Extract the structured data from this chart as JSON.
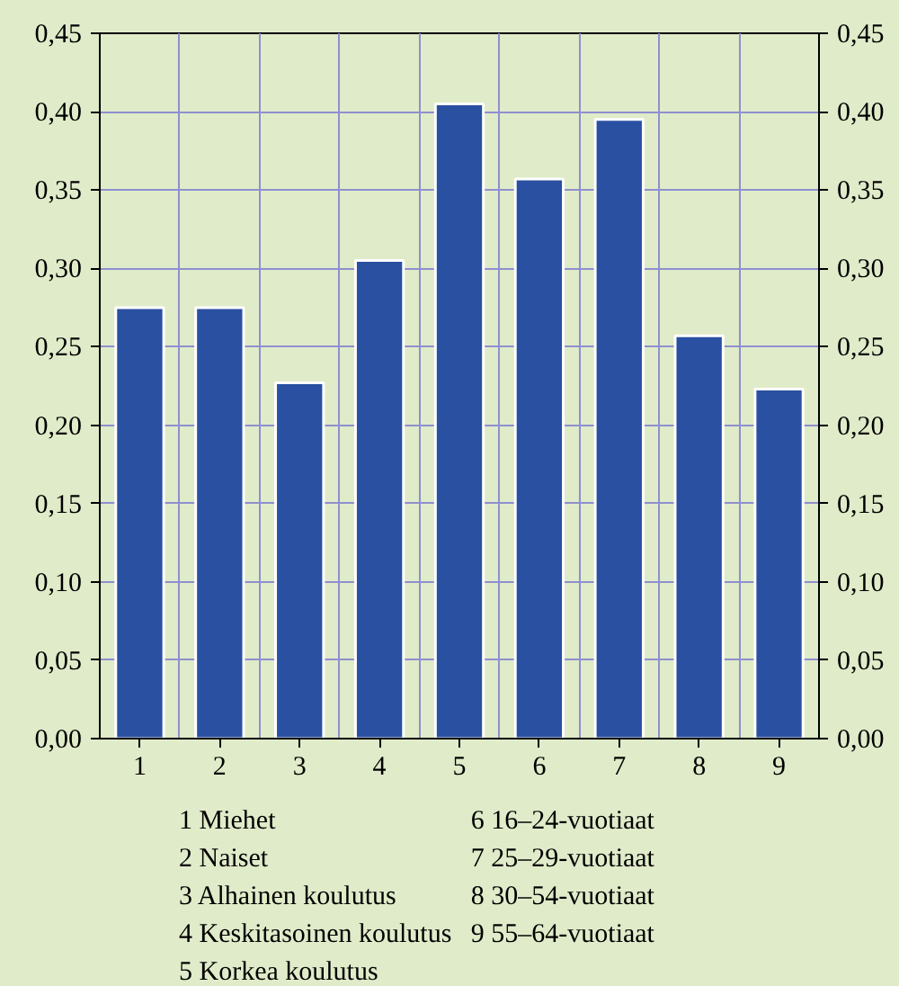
{
  "chart_data": {
    "type": "bar",
    "categories": [
      "1",
      "2",
      "3",
      "4",
      "5",
      "6",
      "7",
      "8",
      "9"
    ],
    "values": [
      0.275,
      0.275,
      0.227,
      0.305,
      0.405,
      0.357,
      0.395,
      0.257,
      0.223
    ],
    "color": "#2a50a2",
    "ylim": [
      0,
      0.45
    ],
    "yticks": [
      {
        "value": 0,
        "label": "0,00"
      },
      {
        "value": 0.05,
        "label": "0,05"
      },
      {
        "value": 0.1,
        "label": "0,10"
      },
      {
        "value": 0.15,
        "label": "0,15"
      },
      {
        "value": 0.2,
        "label": "0,20"
      },
      {
        "value": 0.25,
        "label": "0,25"
      },
      {
        "value": 0.3,
        "label": "0,30"
      },
      {
        "value": 0.35,
        "label": "0,35"
      },
      {
        "value": 0.4,
        "label": "0,40"
      },
      {
        "value": 0.45,
        "label": "0,45"
      }
    ],
    "y2lim": [
      0,
      0.45
    ],
    "y2ticks": [
      {
        "value": 0,
        "label": "0,00"
      },
      {
        "value": 0.05,
        "label": "0,05"
      },
      {
        "value": 0.1,
        "label": "0,10"
      },
      {
        "value": 0.15,
        "label": "0,15"
      },
      {
        "value": 0.2,
        "label": "0,20"
      },
      {
        "value": 0.25,
        "label": "0,25"
      },
      {
        "value": 0.3,
        "label": "0,30"
      },
      {
        "value": 0.35,
        "label": "0,35"
      },
      {
        "value": 0.4,
        "label": "0,40"
      },
      {
        "value": 0.45,
        "label": "0,45"
      }
    ],
    "grid": true,
    "annotations": [
      "1  Miehet",
      "2  Naiset",
      "3  Alhainen koulutus",
      "4  Keskitasoinen koulutus",
      "5  Korkea koulutus",
      "6  16–24-vuotiaat",
      "7  25–29-vuotiaat",
      "8  30–54-vuotiaat",
      "9  55–64-vuotiaat"
    ]
  }
}
